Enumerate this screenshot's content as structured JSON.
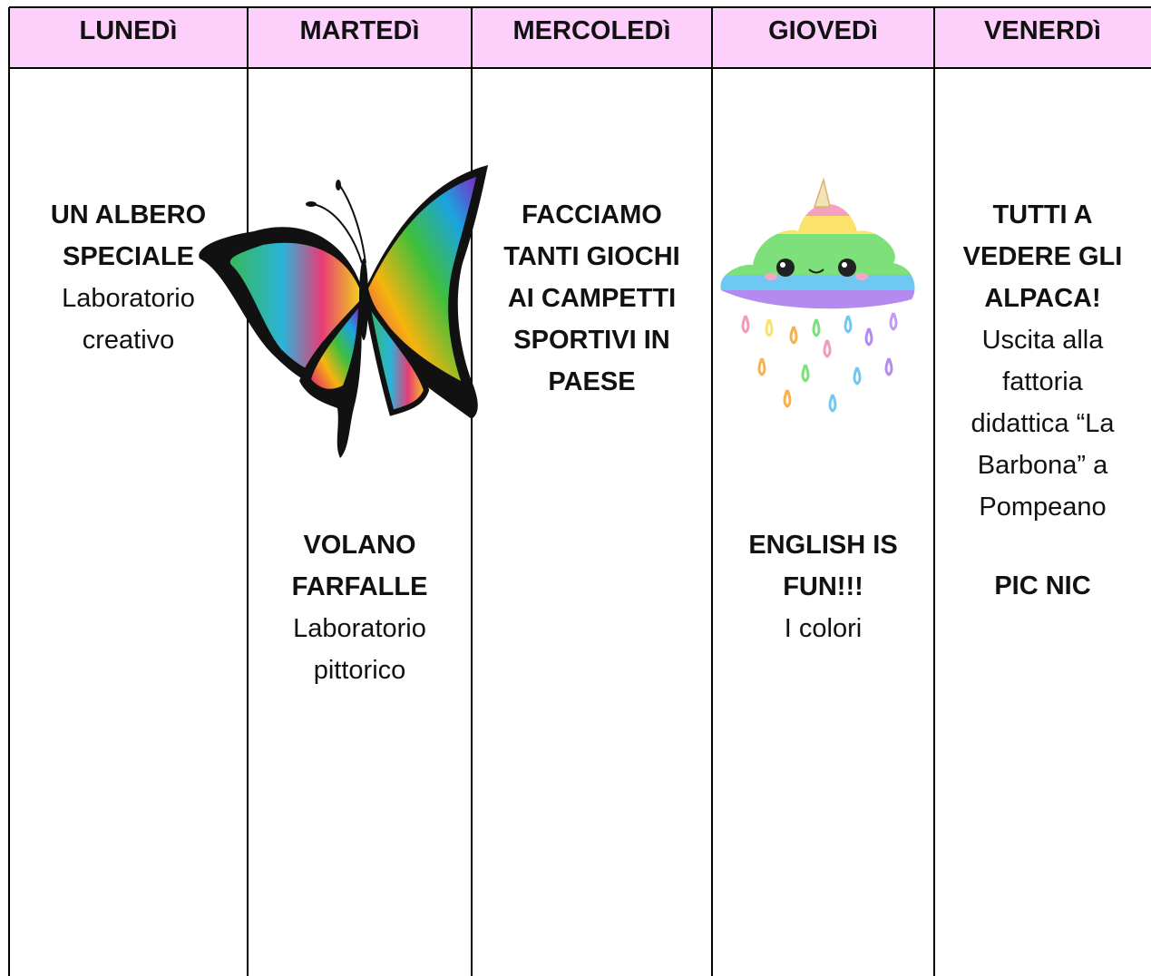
{
  "table": {
    "headers": [
      "LUNEDì",
      "MARTEDì",
      "MERCOLEDì",
      "GIOVEDì",
      "VENERDì"
    ],
    "columns": [
      {
        "blocks": [
          {
            "title": [
              "UN ALBERO",
              "SPECIALE"
            ],
            "body": [
              "Laboratorio",
              "creativo"
            ]
          }
        ]
      },
      {
        "blocks": [
          {
            "title": [
              "VOLANO",
              "FARFALLE"
            ],
            "body": [
              "Laboratorio",
              "pittorico"
            ]
          }
        ]
      },
      {
        "blocks": [
          {
            "title": [
              "FACCIAMO",
              "TANTI GIOCHI",
              "AI CAMPETTI",
              "SPORTIVI IN",
              "PAESE"
            ]
          }
        ]
      },
      {
        "blocks": [
          {
            "title": [
              "ENGLISH IS",
              "FUN!!!"
            ],
            "body": [
              "I colori"
            ]
          }
        ]
      },
      {
        "blocks": [
          {
            "title": [
              "TUTTI A",
              "VEDERE GLI",
              "ALPACA!"
            ],
            "body": [
              "Uscita alla",
              "fattoria",
              "didattica “La",
              "Barbona” a",
              "Pompeano"
            ]
          },
          {
            "title": [
              "PIC NIC"
            ]
          }
        ]
      }
    ]
  }
}
